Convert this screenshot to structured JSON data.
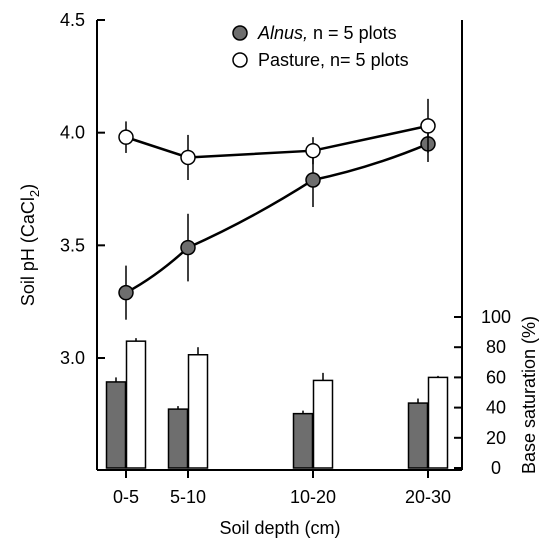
{
  "chart_data": {
    "type": "line+bar",
    "x_label": "Soil depth (cm)",
    "categories": [
      "0-5",
      "5-10",
      "10-20",
      "20-30"
    ],
    "left_axis": {
      "label": "Soil pH (CaCl",
      "label_subscript": "2",
      "label_suffix": ")",
      "range": [
        2.6,
        4.5
      ],
      "ticks": [
        "3.0",
        "3.5",
        "4.0",
        "4.5"
      ],
      "tick_values": [
        3.0,
        3.5,
        4.0,
        4.5
      ]
    },
    "right_axis": {
      "label": "Base saturation (%)",
      "range": [
        0,
        100
      ],
      "ticks": [
        "0",
        "20",
        "40",
        "60",
        "80",
        "100"
      ],
      "tick_values": [
        0,
        20,
        40,
        60,
        80,
        100
      ]
    },
    "legend": {
      "position": "top-right",
      "entries": [
        {
          "name": "Alnus,",
          "suffix": " n = 5 plots",
          "marker": "filled",
          "italic": true
        },
        {
          "name": "Pasture, n= 5 plots",
          "suffix": "",
          "marker": "open",
          "italic": false
        }
      ]
    },
    "ph_series": [
      {
        "name": "Alnus",
        "marker": "filled",
        "values": [
          3.29,
          3.49,
          3.79,
          3.95
        ],
        "errors": [
          0.12,
          0.15,
          0.12,
          0.08
        ]
      },
      {
        "name": "Pasture",
        "marker": "open",
        "values": [
          3.98,
          3.89,
          3.92,
          4.03
        ],
        "errors": [
          0.07,
          0.1,
          0.06,
          0.12
        ]
      }
    ],
    "base_saturation_series": [
      {
        "name": "Alnus",
        "fill": "#6e6e6e",
        "values": [
          57,
          39,
          36,
          43
        ],
        "errors": [
          3,
          2,
          2,
          3
        ]
      },
      {
        "name": "Pasture",
        "fill": "#ffffff",
        "values": [
          84,
          75,
          58,
          60
        ],
        "errors": [
          2,
          5,
          5,
          1
        ]
      }
    ],
    "colors": {
      "filled_marker": "#6e6e6e",
      "open_marker": "#ffffff",
      "line": "#000000"
    },
    "grid": false
  }
}
